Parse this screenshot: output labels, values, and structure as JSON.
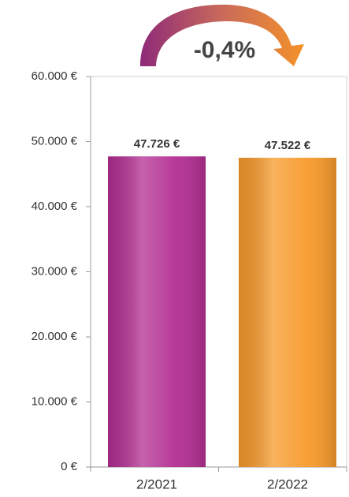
{
  "chart_data": {
    "type": "bar",
    "categories": [
      "2/2021",
      "2/2022"
    ],
    "values": [
      47726,
      47522
    ],
    "value_labels": [
      "47.726 €",
      "47.522 €"
    ],
    "colors": [
      "#b32e92",
      "#f79a2a"
    ],
    "ylim": [
      0,
      60000
    ],
    "yticks": [
      {
        "value": 0,
        "label": "0 €"
      },
      {
        "value": 10000,
        "label": "10.000 €"
      },
      {
        "value": 20000,
        "label": "20.000 €"
      },
      {
        "value": 30000,
        "label": "30.000 €"
      },
      {
        "value": 40000,
        "label": "40.000 €"
      },
      {
        "value": 50000,
        "label": "50.000 €"
      },
      {
        "value": 60000,
        "label": "60.000 €"
      }
    ],
    "annotation": "-0,4%"
  }
}
